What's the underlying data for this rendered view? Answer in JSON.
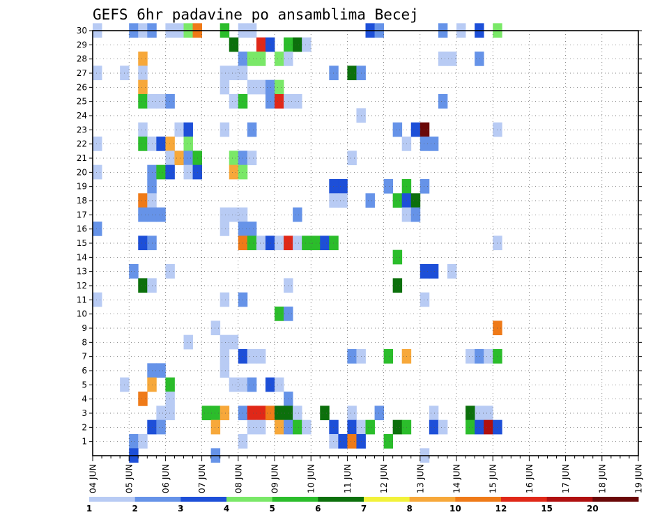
{
  "chart_data": {
    "type": "heatmap",
    "title": "GEFS 6hr padavine po ansamblima Becej",
    "x_ticks": [
      "04 JUN",
      "05 JUN",
      "06 JUN",
      "07 JUN",
      "08 JUN",
      "09 JUN",
      "10 JUN",
      "11 JUN",
      "12 JUN",
      "13 JUN",
      "14 JUN",
      "15 JUN",
      "16 JUN",
      "17 JUN",
      "18 JUN",
      "19 JUN"
    ],
    "y_ticks": [
      1,
      2,
      3,
      4,
      5,
      6,
      7,
      8,
      9,
      10,
      11,
      12,
      13,
      14,
      15,
      16,
      17,
      18,
      19,
      20,
      21,
      22,
      23,
      24,
      25,
      26,
      27,
      28,
      29,
      30
    ],
    "xlim": [
      0,
      60
    ],
    "ylim": [
      0,
      30
    ],
    "x_unit": "6-hour step from 04 JUN 00Z",
    "y_unit": "ensemble member",
    "grid": true,
    "colorbar": {
      "levels": [
        1,
        2,
        3,
        4,
        5,
        6,
        7,
        8,
        10,
        12,
        15,
        20
      ],
      "colors": [
        "#b8cbf4",
        "#6693e8",
        "#1d4fd8",
        "#7ae868",
        "#2bbd2b",
        "#0c700c",
        "#f2f23a",
        "#f7a83a",
        "#ef7a18",
        "#e02818",
        "#b01010",
        "#6a0808"
      ]
    },
    "cells": [
      [
        0,
        30,
        0
      ],
      [
        4,
        30,
        1
      ],
      [
        5,
        30,
        0
      ],
      [
        6,
        30,
        1
      ],
      [
        8,
        30,
        0
      ],
      [
        9,
        30,
        0
      ],
      [
        10,
        30,
        3
      ],
      [
        11,
        30,
        8
      ],
      [
        14,
        30,
        4
      ],
      [
        16,
        30,
        0
      ],
      [
        17,
        30,
        0
      ],
      [
        30,
        30,
        2
      ],
      [
        31,
        30,
        1
      ],
      [
        38,
        30,
        1
      ],
      [
        40,
        30,
        0
      ],
      [
        42,
        30,
        2
      ],
      [
        44,
        30,
        3
      ],
      [
        15,
        29,
        5
      ],
      [
        18,
        29,
        9
      ],
      [
        19,
        29,
        2
      ],
      [
        21,
        29,
        4
      ],
      [
        22,
        29,
        5
      ],
      [
        23,
        29,
        0
      ],
      [
        5,
        28,
        7
      ],
      [
        16,
        28,
        1
      ],
      [
        17,
        28,
        3
      ],
      [
        18,
        28,
        3
      ],
      [
        20,
        28,
        3
      ],
      [
        21,
        28,
        0
      ],
      [
        38,
        28,
        0
      ],
      [
        39,
        28,
        0
      ],
      [
        42,
        28,
        1
      ],
      [
        0,
        27,
        0
      ],
      [
        3,
        27,
        0
      ],
      [
        5,
        27,
        0
      ],
      [
        14,
        27,
        0
      ],
      [
        15,
        27,
        0
      ],
      [
        16,
        27,
        0
      ],
      [
        26,
        27,
        1
      ],
      [
        28,
        27,
        5
      ],
      [
        29,
        27,
        1
      ],
      [
        5,
        26,
        7
      ],
      [
        14,
        26,
        0
      ],
      [
        17,
        26,
        0
      ],
      [
        18,
        26,
        0
      ],
      [
        19,
        26,
        1
      ],
      [
        20,
        26,
        3
      ],
      [
        5,
        25,
        4
      ],
      [
        6,
        25,
        0
      ],
      [
        7,
        25,
        0
      ],
      [
        8,
        25,
        1
      ],
      [
        15,
        25,
        0
      ],
      [
        16,
        25,
        4
      ],
      [
        19,
        25,
        1
      ],
      [
        20,
        25,
        9
      ],
      [
        21,
        25,
        0
      ],
      [
        22,
        25,
        0
      ],
      [
        38,
        25,
        1
      ],
      [
        29,
        24,
        0
      ],
      [
        5,
        23,
        0
      ],
      [
        9,
        23,
        0
      ],
      [
        10,
        23,
        2
      ],
      [
        14,
        23,
        0
      ],
      [
        17,
        23,
        1
      ],
      [
        33,
        23,
        1
      ],
      [
        35,
        23,
        2
      ],
      [
        36,
        23,
        11
      ],
      [
        44,
        23,
        0
      ],
      [
        0,
        22,
        0
      ],
      [
        5,
        22,
        4
      ],
      [
        6,
        22,
        0
      ],
      [
        7,
        22,
        2
      ],
      [
        8,
        22,
        7
      ],
      [
        10,
        22,
        3
      ],
      [
        34,
        22,
        0
      ],
      [
        36,
        22,
        1
      ],
      [
        37,
        22,
        1
      ],
      [
        8,
        21,
        0
      ],
      [
        9,
        21,
        7
      ],
      [
        10,
        21,
        1
      ],
      [
        11,
        21,
        4
      ],
      [
        15,
        21,
        3
      ],
      [
        16,
        21,
        1
      ],
      [
        17,
        21,
        0
      ],
      [
        28,
        21,
        0
      ],
      [
        0,
        20,
        0
      ],
      [
        6,
        20,
        1
      ],
      [
        7,
        20,
        4
      ],
      [
        8,
        20,
        2
      ],
      [
        10,
        20,
        0
      ],
      [
        11,
        20,
        2
      ],
      [
        15,
        20,
        7
      ],
      [
        16,
        20,
        3
      ],
      [
        6,
        19,
        1
      ],
      [
        27,
        19,
        2
      ],
      [
        36,
        19,
        1
      ],
      [
        34,
        19,
        4
      ],
      [
        32,
        19,
        1
      ],
      [
        26,
        19,
        2
      ],
      [
        5,
        18,
        8
      ],
      [
        6,
        18,
        0
      ],
      [
        26,
        18,
        0
      ],
      [
        27,
        18,
        0
      ],
      [
        30,
        18,
        1
      ],
      [
        33,
        18,
        4
      ],
      [
        34,
        18,
        2
      ],
      [
        35,
        18,
        5
      ],
      [
        5,
        17,
        1
      ],
      [
        6,
        17,
        1
      ],
      [
        7,
        17,
        1
      ],
      [
        14,
        17,
        0
      ],
      [
        15,
        17,
        0
      ],
      [
        16,
        17,
        0
      ],
      [
        22,
        17,
        1
      ],
      [
        34,
        17,
        0
      ],
      [
        35,
        17,
        1
      ],
      [
        0,
        16,
        1
      ],
      [
        14,
        16,
        0
      ],
      [
        16,
        16,
        1
      ],
      [
        17,
        16,
        1
      ],
      [
        5,
        15,
        2
      ],
      [
        6,
        15,
        1
      ],
      [
        16,
        15,
        8
      ],
      [
        17,
        15,
        4
      ],
      [
        18,
        15,
        0
      ],
      [
        19,
        15,
        2
      ],
      [
        20,
        15,
        0
      ],
      [
        21,
        15,
        9
      ],
      [
        22,
        15,
        0
      ],
      [
        23,
        15,
        4
      ],
      [
        24,
        15,
        4
      ],
      [
        25,
        15,
        2
      ],
      [
        26,
        15,
        4
      ],
      [
        44,
        15,
        0
      ],
      [
        33,
        14,
        4
      ],
      [
        36,
        13,
        2
      ],
      [
        37,
        13,
        2
      ],
      [
        39,
        13,
        0
      ],
      [
        4,
        13,
        1
      ],
      [
        8,
        13,
        0
      ],
      [
        5,
        12,
        5
      ],
      [
        6,
        12,
        0
      ],
      [
        21,
        12,
        0
      ],
      [
        33,
        12,
        5
      ],
      [
        0,
        11,
        0
      ],
      [
        14,
        11,
        0
      ],
      [
        16,
        11,
        1
      ],
      [
        36,
        11,
        0
      ],
      [
        20,
        10,
        4
      ],
      [
        21,
        10,
        1
      ],
      [
        13,
        9,
        0
      ],
      [
        44,
        9,
        8
      ],
      [
        10,
        8,
        0
      ],
      [
        14,
        8,
        0
      ],
      [
        15,
        8,
        0
      ],
      [
        14,
        7,
        0
      ],
      [
        16,
        7,
        2
      ],
      [
        17,
        7,
        0
      ],
      [
        18,
        7,
        0
      ],
      [
        28,
        7,
        1
      ],
      [
        29,
        7,
        0
      ],
      [
        32,
        7,
        4
      ],
      [
        34,
        7,
        7
      ],
      [
        41,
        7,
        0
      ],
      [
        42,
        7,
        1
      ],
      [
        43,
        7,
        0
      ],
      [
        44,
        7,
        4
      ],
      [
        6,
        6,
        1
      ],
      [
        7,
        6,
        1
      ],
      [
        14,
        6,
        0
      ],
      [
        3,
        5,
        0
      ],
      [
        6,
        5,
        7
      ],
      [
        8,
        5,
        4
      ],
      [
        15,
        5,
        0
      ],
      [
        16,
        5,
        0
      ],
      [
        17,
        5,
        1
      ],
      [
        19,
        5,
        2
      ],
      [
        20,
        5,
        0
      ],
      [
        5,
        4,
        8
      ],
      [
        8,
        4,
        0
      ],
      [
        21,
        4,
        1
      ],
      [
        42,
        3,
        0
      ],
      [
        7,
        3,
        0
      ],
      [
        8,
        3,
        0
      ],
      [
        12,
        3,
        4
      ],
      [
        13,
        3,
        4
      ],
      [
        14,
        3,
        7
      ],
      [
        16,
        3,
        1
      ],
      [
        17,
        3,
        9
      ],
      [
        18,
        3,
        9
      ],
      [
        19,
        3,
        8
      ],
      [
        20,
        3,
        5
      ],
      [
        21,
        3,
        5
      ],
      [
        22,
        3,
        0
      ],
      [
        25,
        3,
        5
      ],
      [
        28,
        3,
        0
      ],
      [
        31,
        3,
        1
      ],
      [
        37,
        3,
        0
      ],
      [
        41,
        3,
        5
      ],
      [
        43,
        3,
        0
      ],
      [
        6,
        2,
        2
      ],
      [
        7,
        2,
        1
      ],
      [
        13,
        2,
        7
      ],
      [
        17,
        2,
        0
      ],
      [
        18,
        2,
        0
      ],
      [
        20,
        2,
        7
      ],
      [
        21,
        2,
        1
      ],
      [
        22,
        2,
        4
      ],
      [
        23,
        2,
        0
      ],
      [
        26,
        2,
        2
      ],
      [
        28,
        2,
        2
      ],
      [
        29,
        2,
        0
      ],
      [
        30,
        2,
        4
      ],
      [
        33,
        2,
        5
      ],
      [
        34,
        2,
        4
      ],
      [
        37,
        2,
        2
      ],
      [
        38,
        2,
        0
      ],
      [
        41,
        2,
        4
      ],
      [
        42,
        2,
        2
      ],
      [
        43,
        2,
        10
      ],
      [
        44,
        2,
        2
      ],
      [
        4,
        1,
        1
      ],
      [
        5,
        1,
        0
      ],
      [
        16,
        1,
        0
      ],
      [
        26,
        1,
        0
      ],
      [
        27,
        1,
        2
      ],
      [
        28,
        1,
        8
      ],
      [
        29,
        1,
        2
      ],
      [
        32,
        1,
        4
      ],
      [
        4,
        0,
        2
      ],
      [
        13,
        0,
        1
      ],
      [
        36,
        0,
        0
      ]
    ]
  }
}
